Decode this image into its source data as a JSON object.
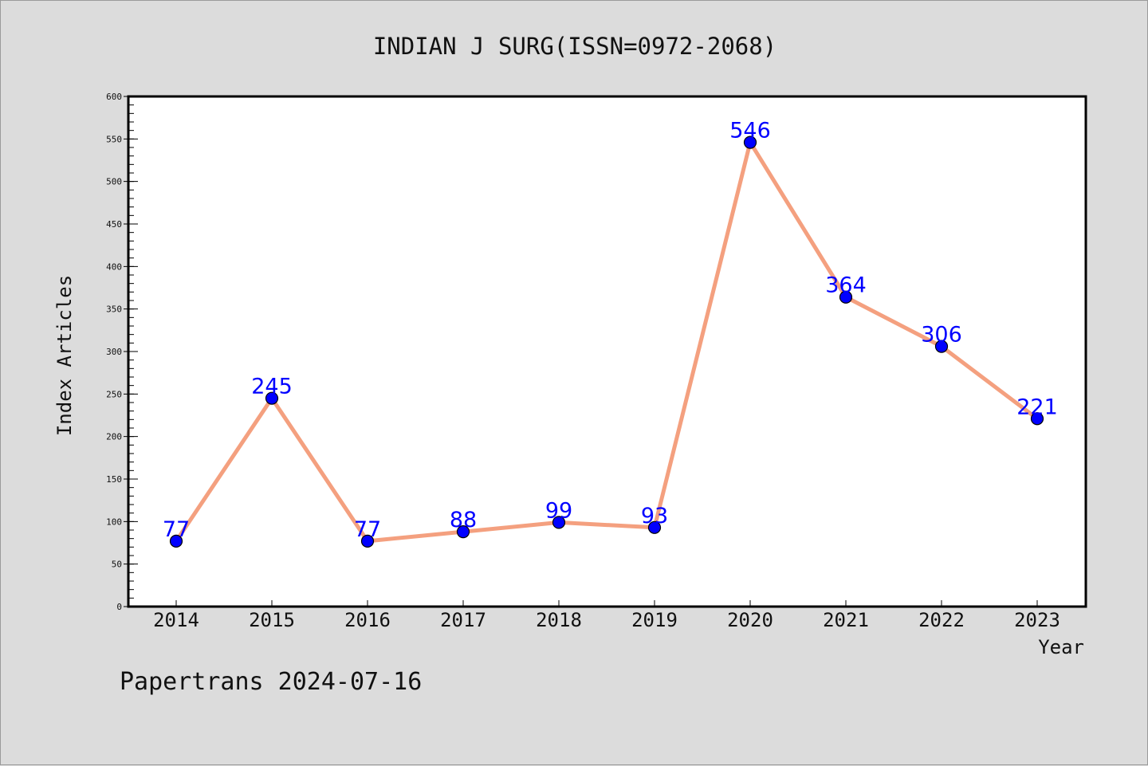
{
  "chart_data": {
    "type": "line",
    "title": "INDIAN J SURG(ISSN=0972-2068)",
    "xlabel": "Year",
    "ylabel": "Index Articles",
    "categories": [
      "2014",
      "2015",
      "2016",
      "2017",
      "2018",
      "2019",
      "2020",
      "2021",
      "2022",
      "2023"
    ],
    "values": [
      77,
      245,
      77,
      88,
      99,
      93,
      546,
      364,
      306,
      221
    ],
    "ylim": [
      0,
      600
    ],
    "yticks": [
      0,
      50,
      100,
      150,
      200,
      250,
      300,
      350,
      400,
      450,
      500,
      550,
      600
    ],
    "grid": false,
    "line_color": "#f4a07f",
    "marker_color": "#0000ff",
    "label_color": "#0000ff"
  },
  "footer": "Papertrans 2024-07-16"
}
